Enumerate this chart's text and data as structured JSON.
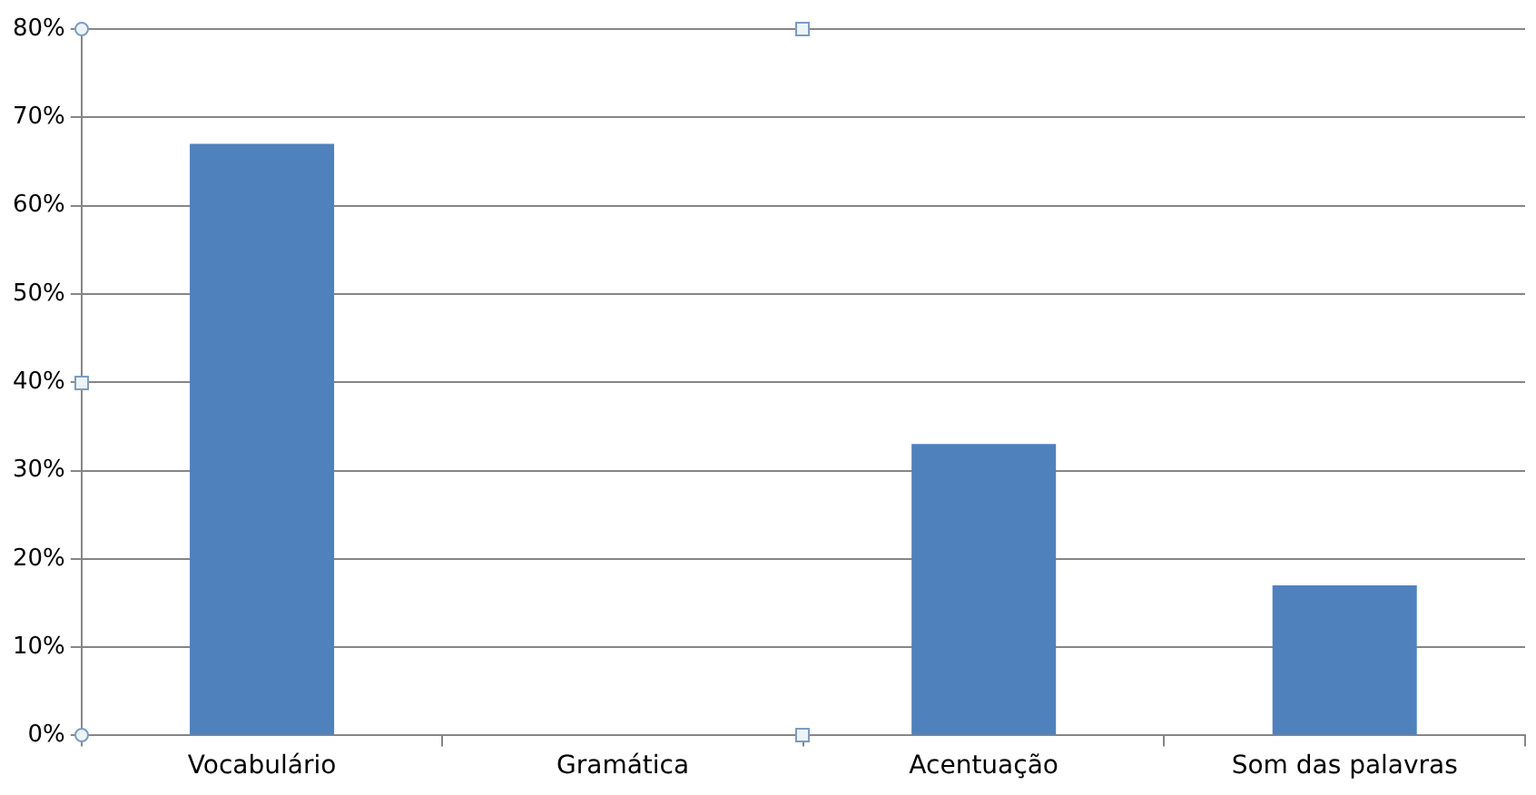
{
  "chart_data": {
    "type": "bar",
    "categories": [
      "Vocabulário",
      "Gramática",
      "Acentuação",
      "Som das palavras"
    ],
    "values": [
      67,
      0,
      33,
      17
    ],
    "color": "#4f81bd",
    "ylim": [
      0,
      80
    ],
    "yticks": [
      {
        "value": 0,
        "label": "0%"
      },
      {
        "value": 10,
        "label": "10%"
      },
      {
        "value": 20,
        "label": "20%"
      },
      {
        "value": 30,
        "label": "30%"
      },
      {
        "value": 40,
        "label": "40%"
      },
      {
        "value": 50,
        "label": "50%"
      },
      {
        "value": 60,
        "label": "60%"
      },
      {
        "value": 70,
        "label": "70%"
      },
      {
        "value": 80,
        "label": "80%"
      }
    ],
    "grid": "y",
    "legend": false
  }
}
